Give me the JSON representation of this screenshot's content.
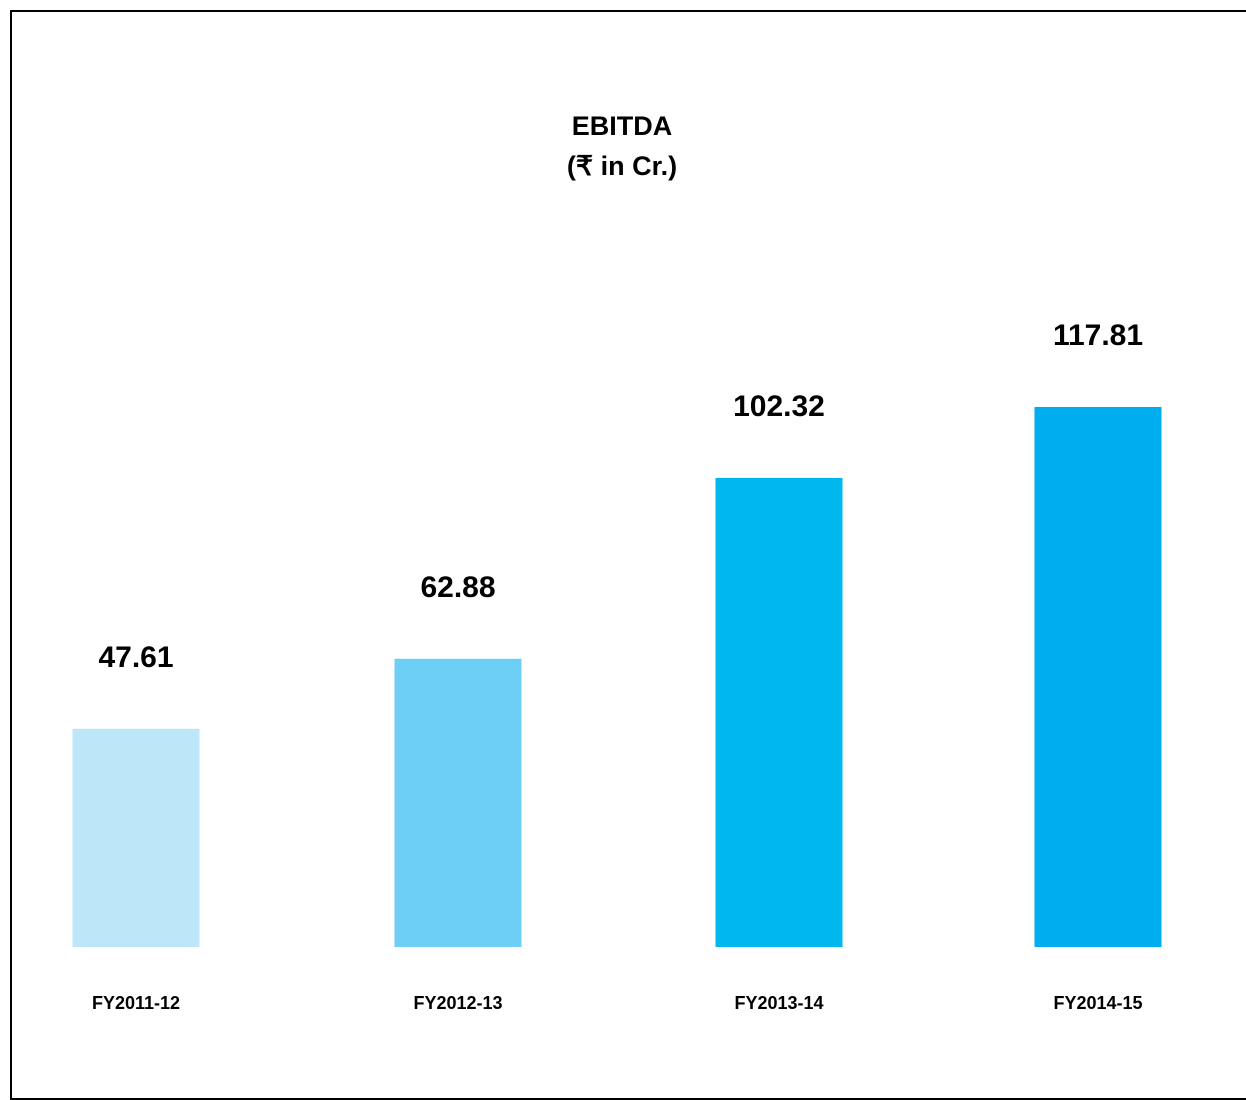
{
  "chart_data": {
    "type": "bar",
    "title": "EBITDA",
    "subtitle": "(₹ in Cr.)",
    "categories": [
      "FY2011-12",
      "FY2012-13",
      "FY2013-14",
      "FY2014-15"
    ],
    "values": [
      47.61,
      62.88,
      102.32,
      117.81
    ],
    "data_labels": [
      "47.61",
      "62.88",
      "102.32",
      "117.81"
    ],
    "bar_colors": [
      "#bde7f9",
      "#6dcff5",
      "#00b8ee",
      "#00aeef"
    ],
    "xlabel": "",
    "ylabel": "",
    "ylim": [
      0,
      117.81
    ],
    "grid": false,
    "legend": "none",
    "axes_visible": false
  }
}
